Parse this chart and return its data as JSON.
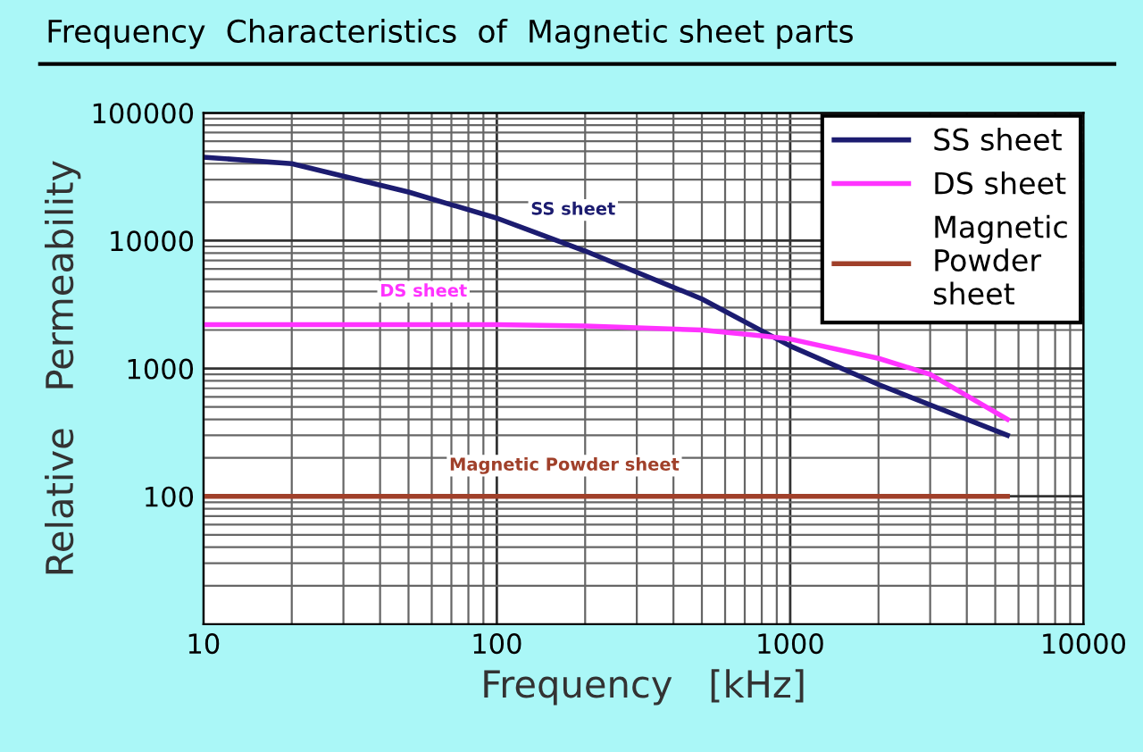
{
  "chart_data": {
    "type": "line",
    "title": "Frequency  Characteristics  of  Magnetic sheet parts",
    "xlabel": "Frequency   [kHz]",
    "ylabel": "Relative   Permeability",
    "log": "xy",
    "xlim": [
      10,
      10000
    ],
    "ylim": [
      10,
      100000
    ],
    "xticks": [
      10,
      100,
      1000,
      10000
    ],
    "yticks": [
      100,
      1000,
      10000,
      100000
    ],
    "grid": true,
    "legend": "top right",
    "marker": "none",
    "line_style": "solid",
    "series": [
      {
        "name": "SS sheet",
        "color": "#1c1c70",
        "x": [
          10,
          20,
          50,
          100,
          200,
          500,
          1000,
          2000,
          5500
        ],
        "values": [
          45000,
          40000,
          24000,
          15000,
          8300,
          3500,
          1500,
          750,
          300
        ]
      },
      {
        "name": "DS sheet",
        "color": "#ff33ff",
        "x": [
          10,
          100,
          200,
          500,
          800,
          1000,
          2000,
          3000,
          5500
        ],
        "values": [
          2200,
          2200,
          2150,
          2000,
          1800,
          1700,
          1200,
          900,
          400
        ]
      },
      {
        "name": "Magnetic\nPowder\nsheet",
        "color": "#a0402a",
        "x": [
          10,
          5500
        ],
        "values": [
          100,
          100
        ]
      }
    ],
    "annotations": [
      "SS sheet",
      "DS sheet",
      "Magnetic Powder sheet"
    ]
  }
}
